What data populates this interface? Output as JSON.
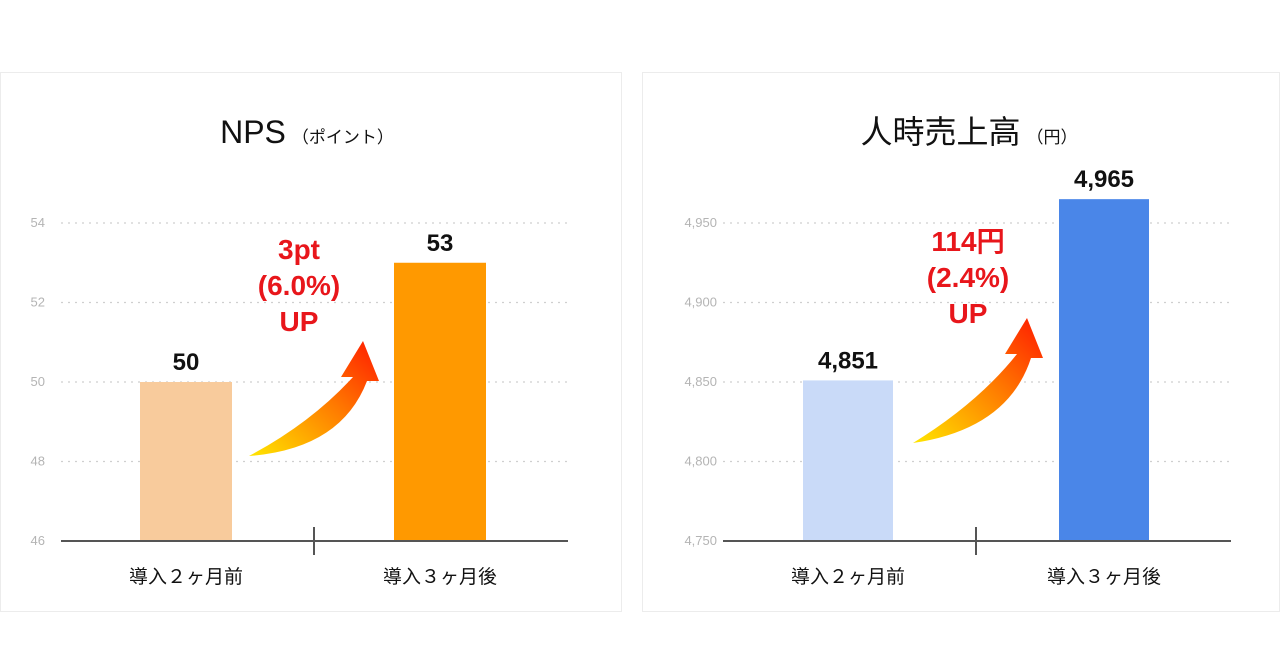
{
  "chart_data": [
    {
      "type": "bar",
      "title": "NPS",
      "unit": "（ポイント）",
      "categories": [
        "導入２ヶ月前",
        "導入３ヶ月後"
      ],
      "values": [
        50,
        53
      ],
      "value_labels": [
        "50",
        "53"
      ],
      "ylim": [
        46,
        54
      ],
      "yticks": [
        46,
        48,
        50,
        52,
        54
      ],
      "ytick_labels": [
        "46",
        "48",
        "50",
        "52",
        "54"
      ],
      "colors": [
        "#f8cb9c",
        "#ff9900"
      ],
      "grid": true,
      "annotation": [
        "3pt",
        "(6.0%)",
        "UP"
      ]
    },
    {
      "type": "bar",
      "title": "人時売上高",
      "unit": "（円）",
      "categories": [
        "導入２ヶ月前",
        "導入３ヶ月後"
      ],
      "values": [
        4851,
        4965
      ],
      "value_labels": [
        "4,851",
        "4,965"
      ],
      "ylim": [
        4750,
        4950
      ],
      "yticks": [
        4750,
        4800,
        4850,
        4900,
        4950
      ],
      "ytick_labels": [
        "4,750",
        "4,800",
        "4,850",
        "4,900",
        "4,950"
      ],
      "colors": [
        "#c9daf8",
        "#4a86e8"
      ],
      "grid": true,
      "annotation": [
        "114円",
        "(2.4%)",
        "UP"
      ]
    }
  ]
}
